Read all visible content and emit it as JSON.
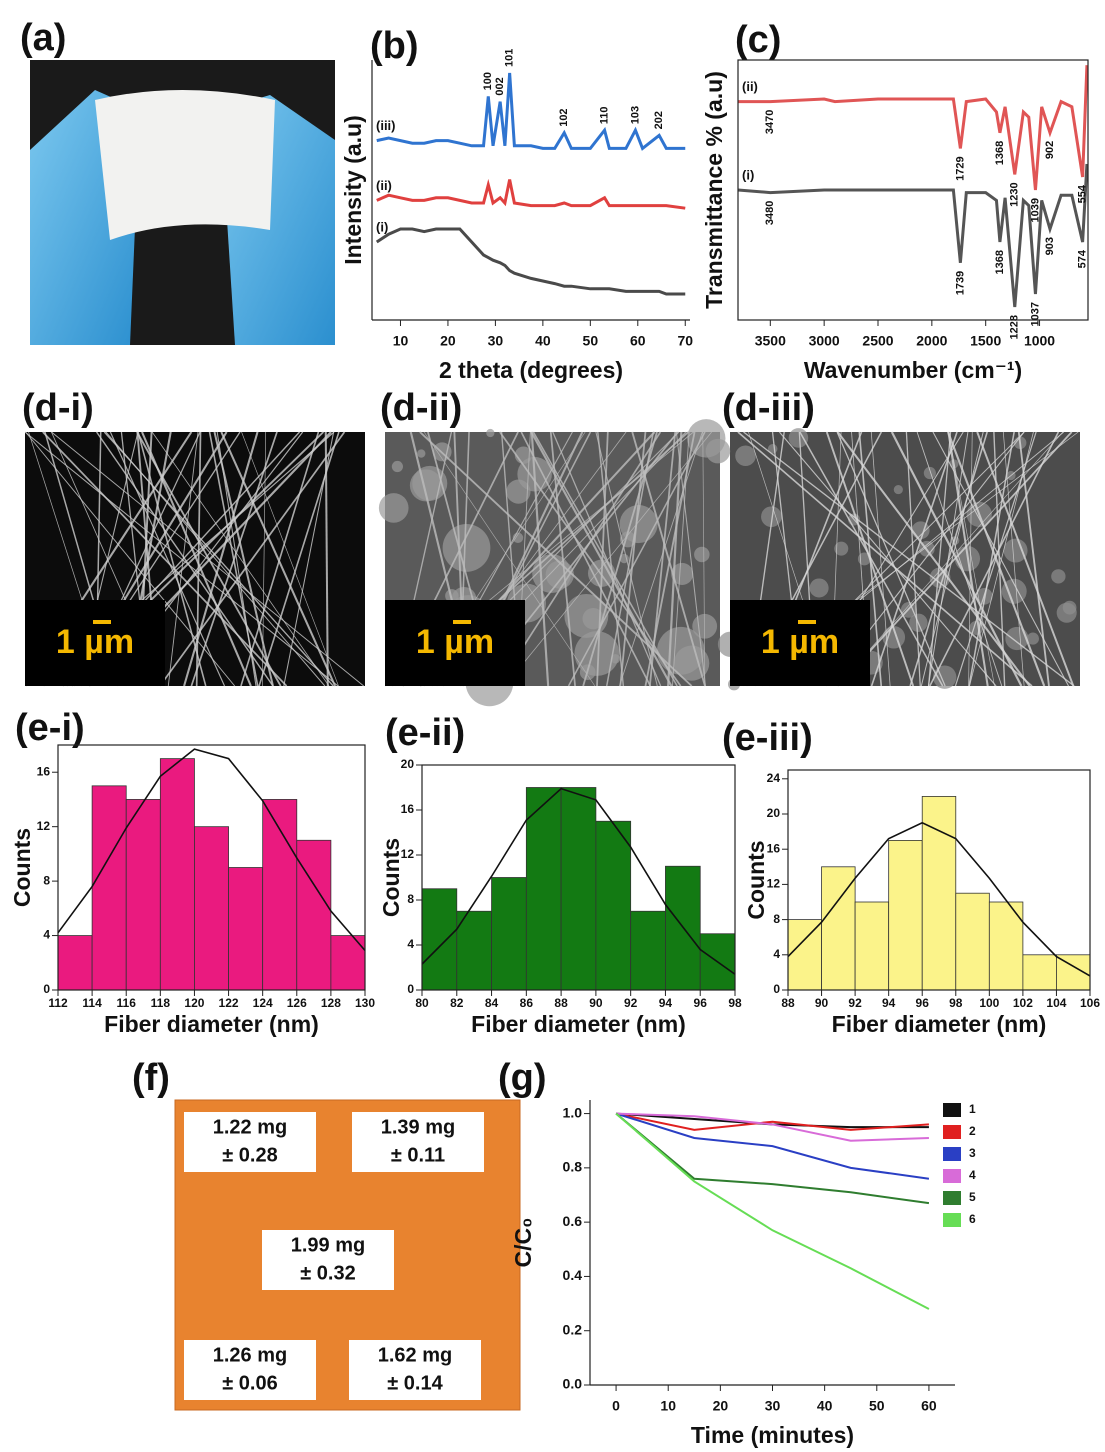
{
  "panel_labels": [
    "(a)",
    "(b)",
    "(c)",
    "(d-i)",
    "(d-ii)",
    "(d-iii)",
    "(e-i)",
    "(e-ii)",
    "(e-iii)",
    "(f)",
    "(g)"
  ],
  "scale_bars": [
    "1 µm",
    "1 µm",
    "1 µm"
  ],
  "mass_map": {
    "cells": [
      [
        "1.22 mg",
        "± 0.28"
      ],
      [
        "1.39 mg",
        "± 0.11"
      ],
      [
        "1.99 mg",
        "± 0.32"
      ],
      [
        "1.26 mg",
        "± 0.06"
      ],
      [
        "1.62 mg",
        "± 0.14"
      ]
    ]
  },
  "chart_data": [
    {
      "type": "line",
      "xlabel": "2 theta (degrees)",
      "ylabel": "Intensity (a.u)",
      "x": [
        5,
        7.5,
        10,
        12.5,
        15,
        17.5,
        20,
        22.5,
        25,
        27.5,
        28.5,
        29.5,
        31,
        32,
        33,
        34,
        37.5,
        40,
        42.5,
        44.5,
        46,
        50,
        53,
        54,
        57.5,
        59.5,
        61,
        64.5,
        66,
        70
      ],
      "xlim": [
        4,
        71
      ],
      "xticks": [
        10,
        20,
        30,
        40,
        50,
        60,
        70
      ],
      "ylim": [
        0,
        100
      ],
      "series": [
        {
          "name": "(iii)",
          "color": "#2f74d0",
          "values": [
            69,
            70,
            69,
            68,
            68,
            69,
            69,
            68,
            67,
            67,
            86,
            67,
            84,
            67,
            95,
            67,
            67,
            66,
            66,
            72,
            66,
            66,
            73,
            66,
            66,
            73,
            66,
            71,
            66,
            66
          ]
        },
        {
          "name": "(ii)",
          "color": "#e0403f",
          "values": [
            46,
            48,
            47,
            46,
            46,
            47,
            47,
            46,
            45,
            45,
            52,
            45,
            47,
            45,
            54,
            45,
            44,
            44,
            44,
            45,
            44,
            44,
            47,
            44,
            44,
            44,
            44,
            44,
            44,
            43
          ]
        },
        {
          "name": "(i)",
          "color": "#4a4a4a",
          "values": [
            30,
            33,
            35,
            35,
            34,
            35,
            35,
            35,
            30,
            25,
            24,
            23,
            22,
            21,
            19,
            18,
            16,
            15,
            14,
            13,
            13,
            12,
            12,
            12,
            11,
            11,
            11,
            11,
            10,
            10
          ]
        }
      ],
      "annotations": [
        {
          "text": "100",
          "x": 28.5,
          "series": 0
        },
        {
          "text": "002",
          "x": 31,
          "series": 0
        },
        {
          "text": "101",
          "x": 33,
          "series": 0
        },
        {
          "text": "102",
          "x": 44.5,
          "series": 0
        },
        {
          "text": "110",
          "x": 53,
          "series": 0
        },
        {
          "text": "103",
          "x": 59.5,
          "series": 0
        },
        {
          "text": "202",
          "x": 64.5,
          "series": 0
        }
      ]
    },
    {
      "type": "line",
      "xlabel": "Wavenumber (cm⁻¹)",
      "ylabel": "Transmittance % (a.u)",
      "x": [
        3800,
        3500,
        3000,
        2900,
        2500,
        2000,
        1800,
        1735,
        1680,
        1500,
        1400,
        1368,
        1320,
        1230,
        1150,
        1100,
        1038,
        980,
        903,
        800,
        700,
        600,
        560
      ],
      "xlim": [
        3800,
        550
      ],
      "xticks": [
        3500,
        3000,
        2500,
        2000,
        1500,
        1000
      ],
      "ylim": [
        0,
        100
      ],
      "series": [
        {
          "name": "(ii)",
          "color": "#e05555",
          "values": [
            84,
            84,
            85,
            84,
            85,
            85,
            85,
            66,
            84,
            85,
            80,
            72,
            82,
            56,
            80,
            78,
            50,
            82,
            72,
            84,
            82,
            55,
            98
          ]
        },
        {
          "name": "(i)",
          "color": "#555555",
          "values": [
            50,
            49,
            50,
            50,
            50,
            50,
            50,
            22,
            49,
            49,
            46,
            30,
            47,
            5,
            46,
            44,
            10,
            46,
            35,
            48,
            48,
            30,
            60
          ]
        }
      ],
      "annotations": [
        {
          "text": "3470",
          "x": 3500,
          "series": 0
        },
        {
          "text": "1729",
          "x": 1735,
          "series": 0
        },
        {
          "text": "1368",
          "x": 1368,
          "series": 0
        },
        {
          "text": "1230",
          "x": 1230,
          "series": 0
        },
        {
          "text": "1039",
          "x": 1038,
          "series": 0
        },
        {
          "text": "902",
          "x": 903,
          "series": 0
        },
        {
          "text": "554",
          "x": 600,
          "series": 0
        },
        {
          "text": "3480",
          "x": 3500,
          "series": 1
        },
        {
          "text": "1739",
          "x": 1735,
          "series": 1
        },
        {
          "text": "1368",
          "x": 1368,
          "series": 1
        },
        {
          "text": "1228",
          "x": 1230,
          "series": 1
        },
        {
          "text": "1037",
          "x": 1038,
          "series": 1
        },
        {
          "text": "903",
          "x": 903,
          "series": 1
        },
        {
          "text": "574",
          "x": 600,
          "series": 1
        }
      ]
    },
    {
      "type": "histogram",
      "xlabel": "Fiber diameter (nm)",
      "ylabel": "Counts",
      "color": "#ea1a7f",
      "bins": [
        112,
        114,
        116,
        118,
        120,
        122,
        124,
        126,
        128,
        130
      ],
      "counts": [
        4,
        15,
        14,
        17,
        12,
        9,
        14,
        11,
        4
      ],
      "xlim": [
        112,
        130
      ],
      "xticks": [
        112,
        114,
        116,
        118,
        120,
        122,
        124,
        126,
        128,
        130
      ],
      "ylim": [
        0,
        18
      ],
      "yticks": [
        0,
        4,
        8,
        12,
        16
      ],
      "fit": {
        "x": [
          112,
          114,
          116,
          118,
          120,
          122,
          124,
          126,
          128,
          130
        ],
        "values": [
          4.2,
          7.6,
          11.9,
          15.7,
          17.7,
          17.0,
          13.9,
          9.7,
          5.8,
          2.9
        ]
      }
    },
    {
      "type": "histogram",
      "xlabel": "Fiber diameter (nm)",
      "ylabel": "Counts",
      "color": "#137a13",
      "bins": [
        80,
        82,
        84,
        86,
        88,
        90,
        92,
        94,
        96,
        98
      ],
      "counts": [
        9,
        7,
        10,
        18,
        18,
        15,
        7,
        11,
        5
      ],
      "xlim": [
        80,
        98
      ],
      "xticks": [
        80,
        82,
        84,
        86,
        88,
        90,
        92,
        94,
        96,
        98
      ],
      "ylim": [
        0,
        20
      ],
      "yticks": [
        0,
        4,
        8,
        12,
        16,
        20
      ],
      "fit": {
        "x": [
          80,
          82,
          84,
          86,
          88,
          90,
          92,
          94,
          96,
          98
        ],
        "values": [
          2.3,
          5.4,
          10.1,
          15.1,
          17.9,
          16.9,
          12.7,
          7.6,
          3.6,
          1.4
        ]
      }
    },
    {
      "type": "histogram",
      "xlabel": "Fiber diameter (nm)",
      "ylabel": "Counts",
      "color": "#fbf38a",
      "bins": [
        88,
        90,
        92,
        94,
        96,
        98,
        100,
        102,
        104,
        106
      ],
      "counts": [
        8,
        14,
        10,
        17,
        22,
        11,
        10,
        4,
        4
      ],
      "xlim": [
        88,
        106
      ],
      "xticks": [
        88,
        90,
        92,
        94,
        96,
        98,
        100,
        102,
        104,
        106
      ],
      "ylim": [
        0,
        25
      ],
      "yticks": [
        0,
        4,
        8,
        12,
        16,
        20,
        24
      ],
      "fit": {
        "x": [
          88,
          90,
          92,
          94,
          96,
          98,
          100,
          102,
          104,
          106
        ],
        "values": [
          3.8,
          7.7,
          12.7,
          17.2,
          19,
          17.2,
          12.7,
          7.7,
          3.8,
          1.6
        ]
      }
    },
    {
      "type": "line",
      "xlabel": "Time (minutes)",
      "ylabel": "C/C₀",
      "x": [
        0,
        15,
        30,
        45,
        60
      ],
      "xlim": [
        -5,
        65
      ],
      "xticks": [
        0,
        10,
        20,
        30,
        40,
        50,
        60
      ],
      "ylim": [
        0,
        1.05
      ],
      "yticks": [
        {
          "value": 0,
          "label": "0.0"
        },
        0.2,
        0.4,
        0.6,
        0.8,
        {
          "value": 1,
          "label": "1.0"
        }
      ],
      "legend": "upper right",
      "series": [
        {
          "name": "1",
          "color": "#111111",
          "values": [
            1,
            0.98,
            0.96,
            0.95,
            0.95
          ]
        },
        {
          "name": "2",
          "color": "#e02020",
          "values": [
            1,
            0.94,
            0.97,
            0.94,
            0.96
          ]
        },
        {
          "name": "3",
          "color": "#2a3fc4",
          "values": [
            1,
            0.91,
            0.88,
            0.8,
            0.76
          ]
        },
        {
          "name": "4",
          "color": "#d86bd8",
          "values": [
            1,
            0.99,
            0.96,
            0.9,
            0.91
          ]
        },
        {
          "name": "5",
          "color": "#2f7d2f",
          "values": [
            1,
            0.76,
            0.74,
            0.71,
            0.67
          ]
        },
        {
          "name": "6",
          "color": "#66dd55",
          "values": [
            1,
            0.75,
            0.57,
            0.43,
            0.28
          ]
        }
      ]
    }
  ]
}
